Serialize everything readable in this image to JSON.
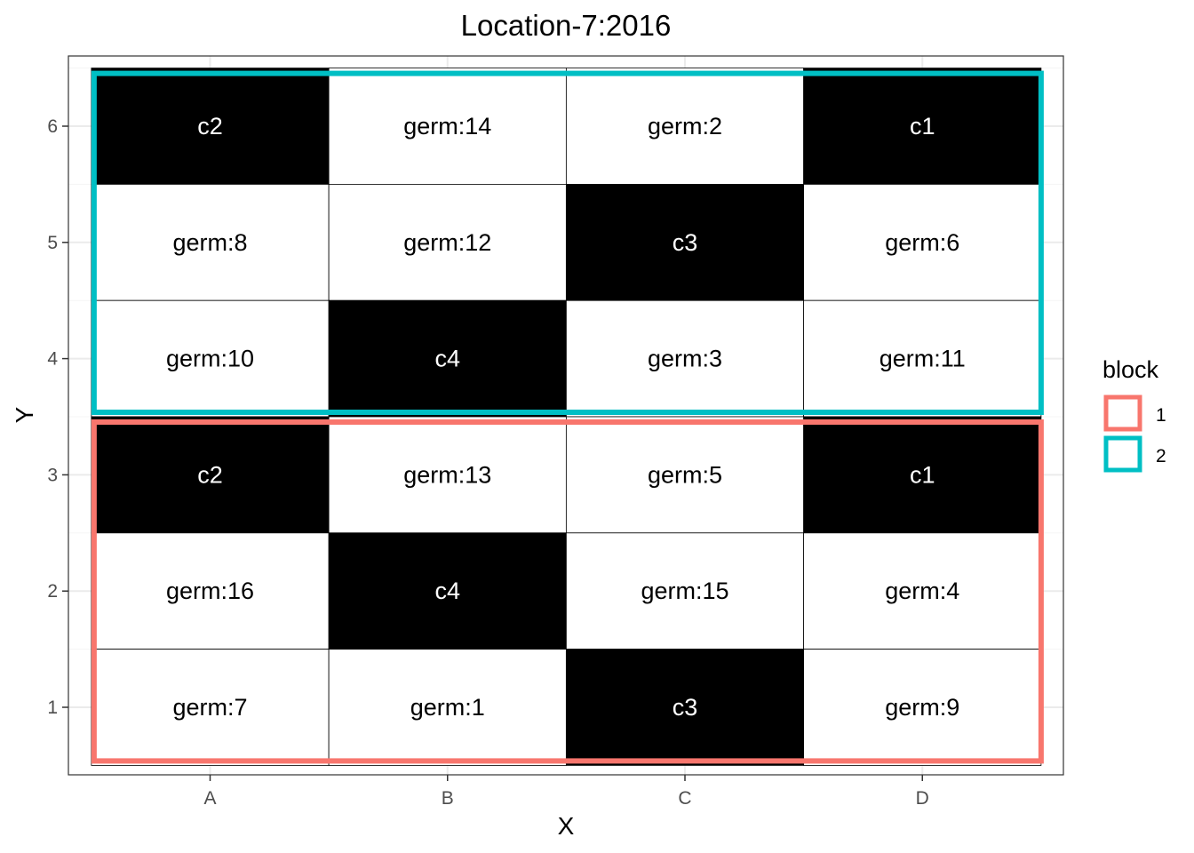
{
  "chart_data": {
    "type": "heatmap",
    "title": "Location-7:2016",
    "xlabel": "X",
    "ylabel": "Y",
    "x_categories": [
      "A",
      "B",
      "C",
      "D"
    ],
    "y_ticks": [
      "1",
      "2",
      "3",
      "4",
      "5",
      "6"
    ],
    "grid": true,
    "legend": {
      "title": "block",
      "position": "right",
      "entries": [
        {
          "label": "1",
          "color": "#F8766D"
        },
        {
          "label": "2",
          "color": "#00BFC4"
        }
      ]
    },
    "cells": [
      {
        "x": "A",
        "y": 6,
        "label": "c2",
        "check": true
      },
      {
        "x": "B",
        "y": 6,
        "label": "germ:14",
        "check": false
      },
      {
        "x": "C",
        "y": 6,
        "label": "germ:2",
        "check": false
      },
      {
        "x": "D",
        "y": 6,
        "label": "c1",
        "check": true
      },
      {
        "x": "A",
        "y": 5,
        "label": "germ:8",
        "check": false
      },
      {
        "x": "B",
        "y": 5,
        "label": "germ:12",
        "check": false
      },
      {
        "x": "C",
        "y": 5,
        "label": "c3",
        "check": true
      },
      {
        "x": "D",
        "y": 5,
        "label": "germ:6",
        "check": false
      },
      {
        "x": "A",
        "y": 4,
        "label": "germ:10",
        "check": false
      },
      {
        "x": "B",
        "y": 4,
        "label": "c4",
        "check": true
      },
      {
        "x": "C",
        "y": 4,
        "label": "germ:3",
        "check": false
      },
      {
        "x": "D",
        "y": 4,
        "label": "germ:11",
        "check": false
      },
      {
        "x": "A",
        "y": 3,
        "label": "c2",
        "check": true
      },
      {
        "x": "B",
        "y": 3,
        "label": "germ:13",
        "check": false
      },
      {
        "x": "C",
        "y": 3,
        "label": "germ:5",
        "check": false
      },
      {
        "x": "D",
        "y": 3,
        "label": "c1",
        "check": true
      },
      {
        "x": "A",
        "y": 2,
        "label": "germ:16",
        "check": false
      },
      {
        "x": "B",
        "y": 2,
        "label": "c4",
        "check": true
      },
      {
        "x": "C",
        "y": 2,
        "label": "germ:15",
        "check": false
      },
      {
        "x": "D",
        "y": 2,
        "label": "germ:4",
        "check": false
      },
      {
        "x": "A",
        "y": 1,
        "label": "germ:7",
        "check": false
      },
      {
        "x": "B",
        "y": 1,
        "label": "germ:1",
        "check": false
      },
      {
        "x": "C",
        "y": 1,
        "label": "c3",
        "check": true
      },
      {
        "x": "D",
        "y": 1,
        "label": "germ:9",
        "check": false
      }
    ],
    "blocks": [
      {
        "block": "1",
        "x_range": [
          "A",
          "D"
        ],
        "y_range": [
          1,
          3
        ],
        "color": "#F8766D"
      },
      {
        "block": "2",
        "x_range": [
          "A",
          "D"
        ],
        "y_range": [
          4,
          6
        ],
        "color": "#00BFC4"
      }
    ]
  }
}
